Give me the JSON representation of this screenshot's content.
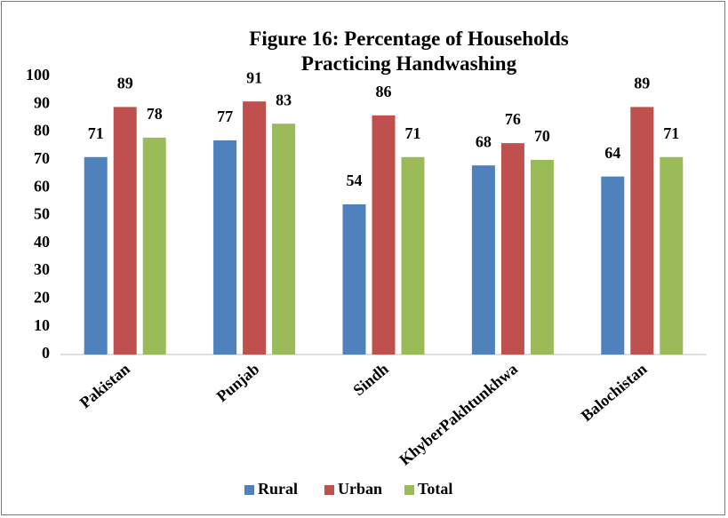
{
  "chart_data": {
    "type": "bar",
    "title": "Figure 16: Percentage of Households Practicing Handwashing",
    "categories": [
      "Pakistan",
      "Punjab",
      "Sindh",
      "KhyberPakhtunkhwa",
      "Balochistan"
    ],
    "series": [
      {
        "name": "Rural",
        "color": "#4f81bd",
        "values": [
          71,
          77,
          54,
          68,
          64
        ]
      },
      {
        "name": "Urban",
        "color": "#c0504d",
        "values": [
          89,
          91,
          86,
          76,
          89
        ]
      },
      {
        "name": "Total",
        "color": "#9bbb59",
        "values": [
          78,
          83,
          71,
          70,
          71
        ]
      }
    ],
    "ylim": [
      0,
      100
    ],
    "yticks": [
      0,
      10,
      20,
      30,
      40,
      50,
      60,
      70,
      80,
      90,
      100
    ],
    "grid": false,
    "legend": "bottom"
  }
}
